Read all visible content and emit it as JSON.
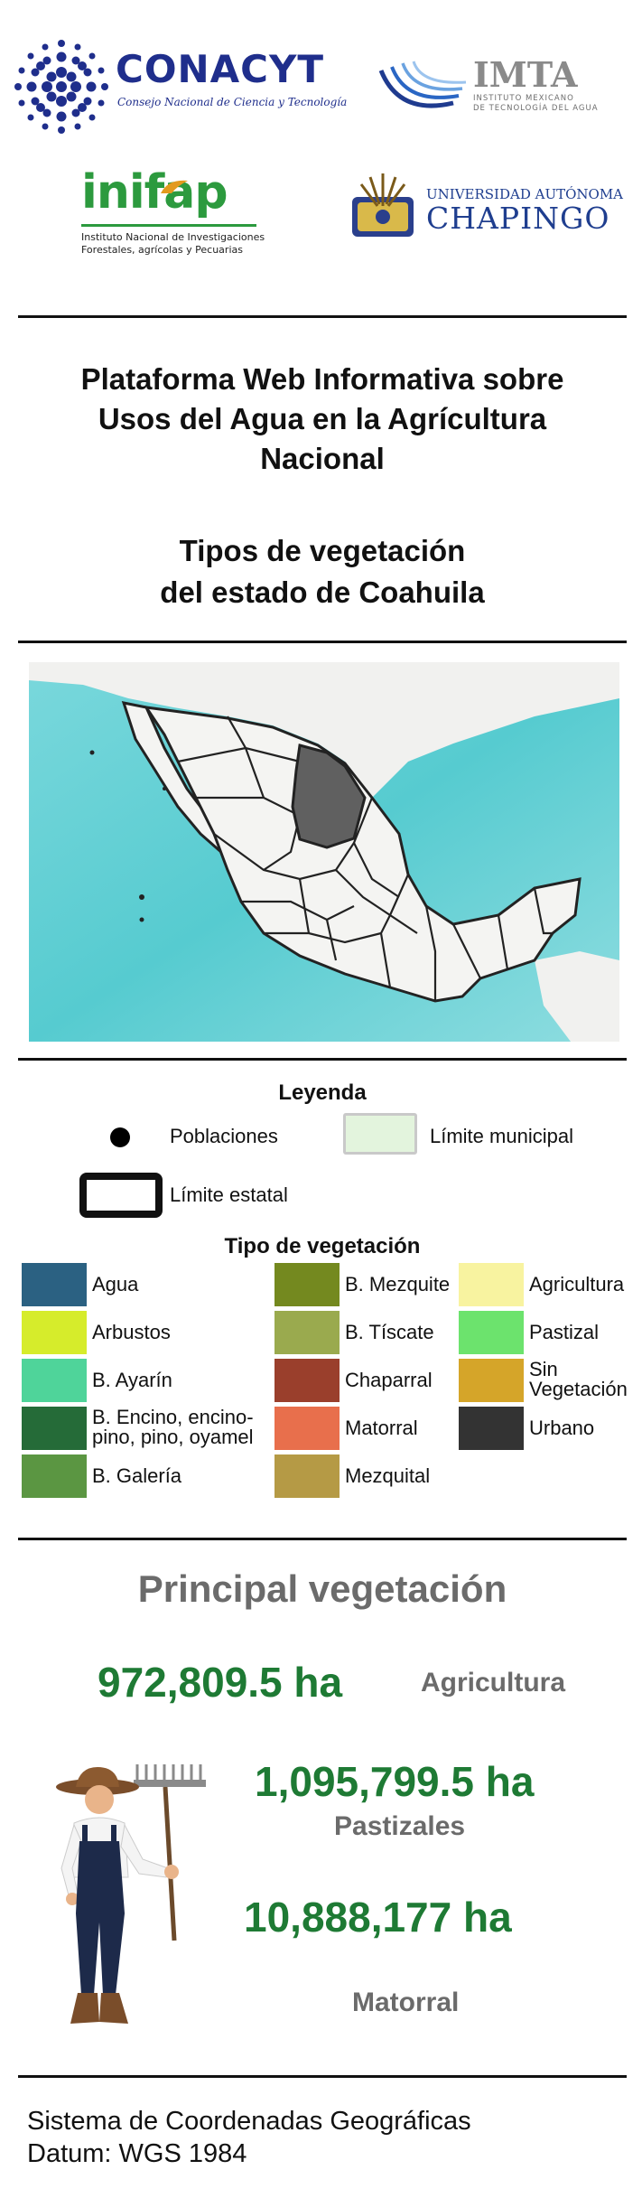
{
  "logos": {
    "conacyt": {
      "name": "CONACYT",
      "subtitle": "Consejo Nacional de Ciencia y Tecnología",
      "icon": "conacyt-logo-icon"
    },
    "imta": {
      "name": "IMTA",
      "subtitle_line1": "INSTITUTO MEXICANO",
      "subtitle_line2": "DE TECNOLOGÍA DEL AGUA",
      "icon": "imta-logo-icon"
    },
    "inifap": {
      "name": "inifap",
      "subtitle_line1": "Instituto Nacional de Investigaciones",
      "subtitle_line2": "Forestales, agrícolas y Pecuarias",
      "icon": "inifap-logo-icon"
    },
    "chapingo": {
      "top": "UNIVERSIDAD AUTÓNOMA",
      "bottom": "CHAPINGO",
      "icon": "chapingo-seal-icon"
    }
  },
  "title": {
    "line1": "Plataforma Web Informativa sobre",
    "line2": "Usos del Agua en la Agrícultura",
    "line3": "Nacional"
  },
  "subtitle": {
    "line1": "Tipos de vegetación",
    "line2": "del estado de Coahuila"
  },
  "map": {
    "icon": "mexico-map-icon",
    "ocean_color": "#62cfd3",
    "land_color": "#f4f4f4",
    "highlight_color": "#5f5f5f"
  },
  "legend": {
    "title": "Leyenda",
    "poblaciones": "Poblaciones",
    "limite_municipal": "Límite municipal",
    "limite_estatal": "Límite estatal",
    "veg_title": "Tipo de vegetación",
    "items": [
      {
        "label": "Agua",
        "color": "#2b6182"
      },
      {
        "label": "Arbustos",
        "color": "#d6ec2b"
      },
      {
        "label": "B. Ayarín",
        "color": "#4fd49a"
      },
      {
        "label1": "B. Encino, encino-",
        "label2": "pino, pino, oyamel",
        "color": "#256b38"
      },
      {
        "label": "B. Galería",
        "color": "#5b9642"
      },
      {
        "label": "B. Mezquite",
        "color": "#74891f"
      },
      {
        "label": "B. Tíscate",
        "color": "#9aaa4e"
      },
      {
        "label": "Chaparral",
        "color": "#9a3f2c"
      },
      {
        "label": "Matorral",
        "color": "#e86f4c"
      },
      {
        "label": "Mezquital",
        "color": "#b59a45"
      },
      {
        "label": "Agricultura",
        "color": "#f8f3a0"
      },
      {
        "label": "Pastizal",
        "color": "#6ce36d"
      },
      {
        "label1": "Sin",
        "label2": "Vegetación",
        "color": "#d5a529"
      },
      {
        "label": "Urbano",
        "color": "#333333"
      }
    ]
  },
  "principal": {
    "title": "Principal vegetación",
    "items": [
      {
        "value": "972,809.5 ha",
        "name": "Agricultura"
      },
      {
        "value": "1,095,799.5 ha",
        "name": "Pastizales"
      },
      {
        "value": "10,888,177 ha",
        "name": "Matorral"
      }
    ],
    "icon": "farmer-icon"
  },
  "footer": {
    "line1": "Sistema de Coordenadas Geográficas",
    "line2": "Datum: WGS 1984"
  }
}
